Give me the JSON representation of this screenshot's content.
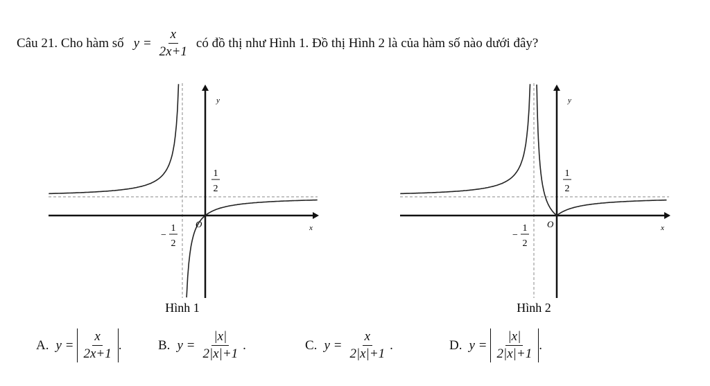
{
  "question": {
    "label": "Câu 21. Cho hàm số",
    "formula": {
      "lhs": "y =",
      "num": "x",
      "den": "2x+1"
    },
    "text": "có đồ thị như Hình 1. Đồ thị Hình 2 là của hàm số nào dưới đây?"
  },
  "figures": [
    {
      "caption": "Hình 1",
      "y_label": "y",
      "x_label": "x",
      "origin": "O",
      "half": {
        "num": "1",
        "den": "2"
      },
      "neg_half": {
        "sign": "−",
        "num": "1",
        "den": "2"
      }
    },
    {
      "caption": "Hình 2",
      "y_label": "y",
      "x_label": "x",
      "origin": "O",
      "half": {
        "num": "1",
        "den": "2"
      },
      "neg_half": {
        "sign": "−",
        "num": "1",
        "den": "2"
      }
    }
  ],
  "options": [
    {
      "label": "A.",
      "lhs": "y =",
      "num": "x",
      "den": "2x+1",
      "abs": true,
      "end": "."
    },
    {
      "label": "B.",
      "lhs": "y =",
      "num": "|x|",
      "den": "2|x|+1",
      "abs": false,
      "end": "."
    },
    {
      "label": "C.",
      "lhs": "y =",
      "num": "x",
      "den": "2|x|+1",
      "abs": false,
      "end": "."
    },
    {
      "label": "D.",
      "lhs": "y =",
      "num": "|x|",
      "den": "2|x|+1",
      "abs": true,
      "end": "."
    }
  ]
}
